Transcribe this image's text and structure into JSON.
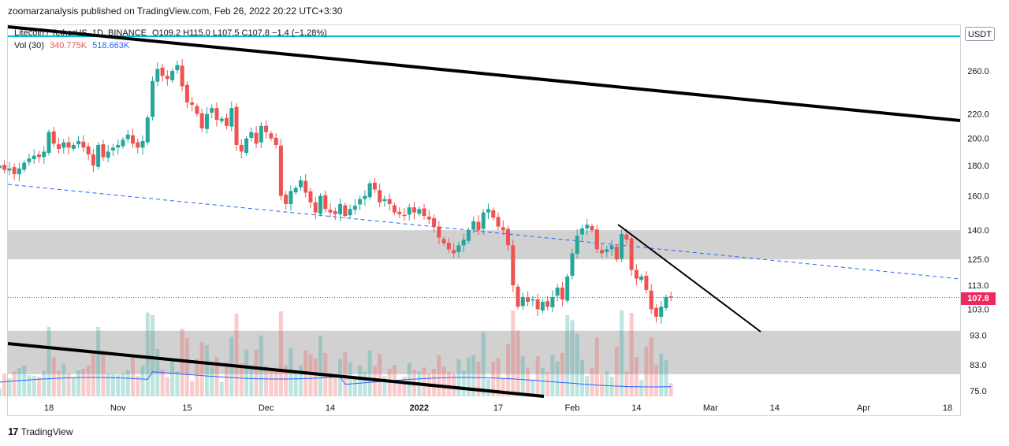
{
  "header": {
    "published": "zoomarzanalysis published on TradingView.com, Feb 26, 2022 20:22 UTC+3:30"
  },
  "legend": {
    "symbol": "Litecoin / TetherUS, 1D, BINANCE",
    "ohlc": "O109.2  H115.0  L107.5  C107.8  −1.4 (−1.28%)",
    "volume_label": "Vol (30)",
    "volume_value": "340.775K",
    "volume_ma": "518.663K"
  },
  "currency_button": "USDT",
  "last_price": "107.8",
  "footer": {
    "brand": "TradingView",
    "logo_glyph": "17"
  },
  "colors": {
    "up": "#26a69a",
    "down": "#ef5350",
    "trendline": "#000000",
    "dashed": "#2962ff",
    "zone": "#c9c9c9",
    "cyan_line": "#00bcd4",
    "price_tag": "#ef275f"
  },
  "chart_data": {
    "type": "candlestick",
    "scale": "log",
    "y_ticks": [
      260,
      220,
      200,
      180,
      160,
      140,
      125,
      113,
      103,
      93,
      83,
      75
    ],
    "x_ticks": [
      {
        "label": "18",
        "date": "2021-10-18"
      },
      {
        "label": "Nov",
        "date": "2021-11-01"
      },
      {
        "label": "15",
        "date": "2021-11-15"
      },
      {
        "label": "Dec",
        "date": "2021-12-01"
      },
      {
        "label": "14",
        "date": "2021-12-14"
      },
      {
        "label": "2022",
        "date": "2022-01-01"
      },
      {
        "label": "17",
        "date": "2022-01-17"
      },
      {
        "label": "Feb",
        "date": "2022-02-01"
      },
      {
        "label": "14",
        "date": "2022-02-14"
      },
      {
        "label": "Mar",
        "date": "2022-03-01"
      },
      {
        "label": "14",
        "date": "2022-03-14"
      },
      {
        "label": "Apr",
        "date": "2022-04-01"
      },
      {
        "label": "18",
        "date": "2022-04-18"
      }
    ],
    "start_date": "2021-10-08",
    "closes": [
      180,
      177,
      178,
      174,
      178,
      182,
      185,
      187,
      186,
      190,
      205,
      196,
      192,
      197,
      193,
      195,
      198,
      193,
      188,
      180,
      195,
      186,
      190,
      193,
      195,
      199,
      203,
      196,
      193,
      198,
      217,
      250,
      262,
      255,
      252,
      260,
      266,
      245,
      230,
      228,
      220,
      208,
      220,
      225,
      215,
      216,
      210,
      225,
      195,
      190,
      200,
      205,
      196,
      210,
      205,
      200,
      195,
      160,
      155,
      163,
      165,
      170,
      162,
      156,
      150,
      160,
      152,
      150,
      149,
      155,
      148,
      152,
      154,
      158,
      160,
      168,
      164,
      156,
      158,
      155,
      150,
      149,
      148,
      153,
      150,
      152,
      148,
      146,
      142,
      136,
      133,
      130,
      128,
      132,
      135,
      140,
      145,
      140,
      150,
      152,
      147,
      142,
      140,
      132,
      113,
      104,
      108,
      106,
      107,
      103,
      106,
      104,
      108,
      112,
      107,
      117,
      128,
      137,
      141,
      143,
      140,
      130,
      128,
      130,
      132,
      125,
      138,
      135,
      120,
      116,
      117,
      111,
      103,
      100,
      104,
      108,
      107.8
    ],
    "volume_ma_note": "Vol (30)",
    "annotations": [
      "descending-trendline-upper",
      "descending-trendline-lower",
      "dashed-trendline",
      "resistance-zone-125-140",
      "support-zone-83-93",
      "short-term-resistance-line"
    ]
  }
}
